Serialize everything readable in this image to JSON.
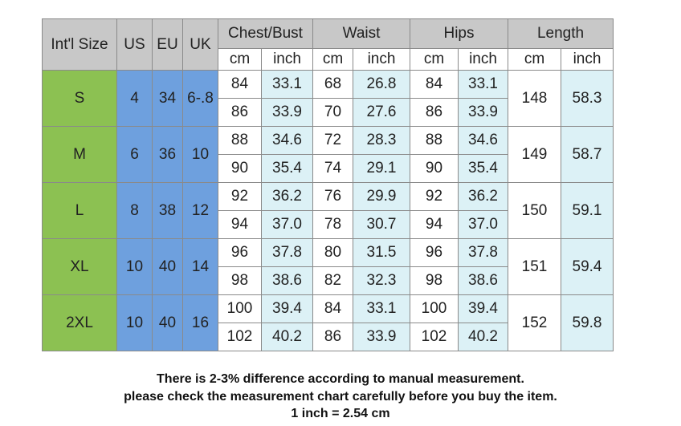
{
  "headers": {
    "intl_size": "Int'l Size",
    "us": "US",
    "eu": "EU",
    "uk": "UK",
    "groups": [
      "Chest/Bust",
      "Waist",
      "Hips",
      "Length"
    ],
    "units": [
      "cm",
      "inch",
      "cm",
      "inch",
      "cm",
      "inch",
      "cm",
      "inch"
    ]
  },
  "sizes": [
    {
      "intl": "S",
      "us": "4",
      "eu": "34",
      "uk": "6-.8",
      "rows": [
        [
          "84",
          "33.1",
          "68",
          "26.8",
          "84",
          "33.1"
        ],
        [
          "86",
          "33.9",
          "70",
          "27.6",
          "86",
          "33.9"
        ]
      ],
      "length_cm": "148",
      "length_inch": "58.3"
    },
    {
      "intl": "M",
      "us": "6",
      "eu": "36",
      "uk": "10",
      "rows": [
        [
          "88",
          "34.6",
          "72",
          "28.3",
          "88",
          "34.6"
        ],
        [
          "90",
          "35.4",
          "74",
          "29.1",
          "90",
          "35.4"
        ]
      ],
      "length_cm": "149",
      "length_inch": "58.7"
    },
    {
      "intl": "L",
      "us": "8",
      "eu": "38",
      "uk": "12",
      "rows": [
        [
          "92",
          "36.2",
          "76",
          "29.9",
          "92",
          "36.2"
        ],
        [
          "94",
          "37.0",
          "78",
          "30.7",
          "94",
          "37.0"
        ]
      ],
      "length_cm": "150",
      "length_inch": "59.1"
    },
    {
      "intl": "XL",
      "us": "10",
      "eu": "40",
      "uk": "14",
      "rows": [
        [
          "96",
          "37.8",
          "80",
          "31.5",
          "96",
          "37.8"
        ],
        [
          "98",
          "38.6",
          "82",
          "32.3",
          "98",
          "38.6"
        ]
      ],
      "length_cm": "151",
      "length_inch": "59.4"
    },
    {
      "intl": "2XL",
      "us": "10",
      "eu": "40",
      "uk": "16",
      "rows": [
        [
          "100",
          "39.4",
          "84",
          "33.1",
          "100",
          "39.4"
        ],
        [
          "102",
          "40.2",
          "86",
          "33.9",
          "102",
          "40.2"
        ]
      ],
      "length_cm": "152",
      "length_inch": "59.8"
    }
  ],
  "notes": [
    "There is 2-3% difference according to manual measurement.",
    "please check the measurement chart carefully before you buy the item.",
    "1 inch = 2.54 cm"
  ],
  "colors": {
    "header_bg": "#c8c8c8",
    "intl_green": "#8cc152",
    "size_blue": "#6ea0de",
    "inch_light": "#dcf1f6",
    "border": "#8a8a8a"
  }
}
